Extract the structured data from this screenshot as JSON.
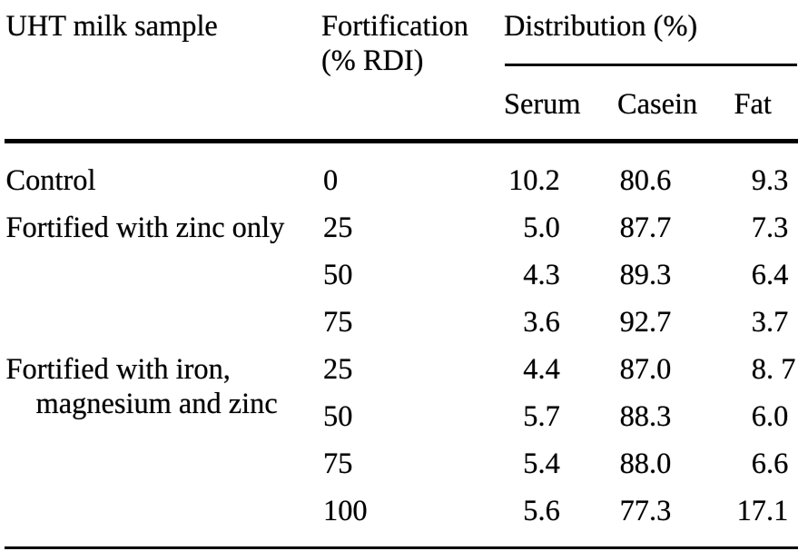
{
  "table": {
    "header": {
      "sample": "UHT milk sample",
      "fortification": "Fortification (% RDI)",
      "distribution": "Distribution (%)",
      "serum": "Serum",
      "casein": "Casein",
      "fat": "Fat"
    },
    "rows": [
      {
        "sample": "Control",
        "fortification": "0",
        "serum": "10.2",
        "casein": "80.6",
        "fat": "9.3"
      },
      {
        "sample": "Fortified with zinc only",
        "fortification": "25",
        "serum": "5.0",
        "casein": "87.7",
        "fat": "7.3"
      },
      {
        "sample": "",
        "fortification": "50",
        "serum": "4.3",
        "casein": "89.3",
        "fat": "6.4"
      },
      {
        "sample": "",
        "fortification": "75",
        "serum": "3.6",
        "casein": "92.7",
        "fat": "3.7"
      },
      {
        "sample": "Fortified with iron, magnesium and zinc",
        "fortification": "25",
        "serum": "4.4",
        "casein": "87.0",
        "fat": "8. 7"
      },
      {
        "sample": "",
        "fortification": "50",
        "serum": "5.7",
        "casein": "88.3",
        "fat": "6.0"
      },
      {
        "sample": "",
        "fortification": "75",
        "serum": "5.4",
        "casein": "88.0",
        "fat": "6.6"
      },
      {
        "sample": "",
        "fortification": "100",
        "serum": "5.6",
        "casein": "77.3",
        "fat": "17.1"
      }
    ],
    "colors": {
      "text": "#000000",
      "rule": "#000000",
      "background": "#ffffff"
    }
  }
}
